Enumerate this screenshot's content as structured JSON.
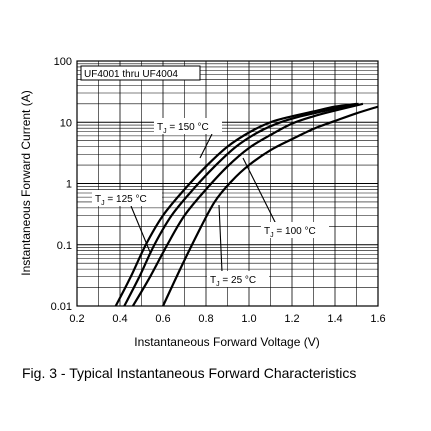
{
  "chart_data": {
    "type": "line",
    "title": "",
    "subtitle": "UF4001 thru UF4004",
    "xlabel": "Instantaneous Forward Voltage (V)",
    "ylabel": "Instantaneous Forward Current (A)",
    "xlim": [
      0.2,
      1.6
    ],
    "ylim": [
      0.01,
      100
    ],
    "yscale": "log",
    "grid": true,
    "x_ticks": [
      "0.2",
      "0.4",
      "0.6",
      "0.8",
      "1.0",
      "1.2",
      "1.4",
      "1.6"
    ],
    "y_ticks": [
      "0.01",
      "0.1",
      "1",
      "10",
      "100"
    ],
    "series": [
      {
        "name": "T_J = 150 °C",
        "x": [
          0.38,
          0.45,
          0.52,
          0.6,
          0.7,
          0.8,
          0.9,
          1.0,
          1.1,
          1.2,
          1.3,
          1.4,
          1.5
        ],
        "y": [
          0.01,
          0.03,
          0.1,
          0.3,
          0.8,
          1.9,
          4.0,
          6.8,
          10.0,
          12.5,
          15.0,
          18.0,
          20.0
        ]
      },
      {
        "name": "T_J = 125 °C",
        "x": [
          0.42,
          0.49,
          0.56,
          0.64,
          0.74,
          0.84,
          0.94,
          1.04,
          1.14,
          1.24,
          1.34,
          1.44,
          1.51
        ],
        "y": [
          0.01,
          0.03,
          0.1,
          0.3,
          0.8,
          1.9,
          4.0,
          6.8,
          9.8,
          12.5,
          15.0,
          18.0,
          20.0
        ]
      },
      {
        "name": "T_J = 100 °C",
        "x": [
          0.46,
          0.54,
          0.62,
          0.7,
          0.8,
          0.9,
          1.0,
          1.1,
          1.2,
          1.3,
          1.4,
          1.53
        ],
        "y": [
          0.01,
          0.03,
          0.1,
          0.3,
          0.8,
          1.9,
          3.8,
          6.2,
          9.5,
          12.5,
          15.5,
          20.0
        ]
      },
      {
        "name": "T_J = 25 °C",
        "x": [
          0.6,
          0.68,
          0.76,
          0.84,
          0.92,
          1.0,
          1.1,
          1.2,
          1.3,
          1.4,
          1.5,
          1.6
        ],
        "y": [
          0.01,
          0.04,
          0.15,
          0.5,
          1.1,
          2.0,
          3.5,
          5.3,
          7.8,
          10.5,
          14.0,
          18.0
        ]
      }
    ],
    "labels": [
      {
        "series": 0,
        "text_main": "T",
        "text_sub": "J",
        "text_rest": " = 150 °C"
      },
      {
        "series": 1,
        "text_main": "T",
        "text_sub": "J",
        "text_rest": " = 125 °C"
      },
      {
        "series": 2,
        "text_main": "T",
        "text_sub": "J",
        "text_rest": " = 100 °C"
      },
      {
        "series": 3,
        "text_main": "T",
        "text_sub": "J",
        "text_rest": " = 25 °C"
      }
    ]
  },
  "caption": "Fig. 3 - Typical Instantaneous Forward Characteristics"
}
